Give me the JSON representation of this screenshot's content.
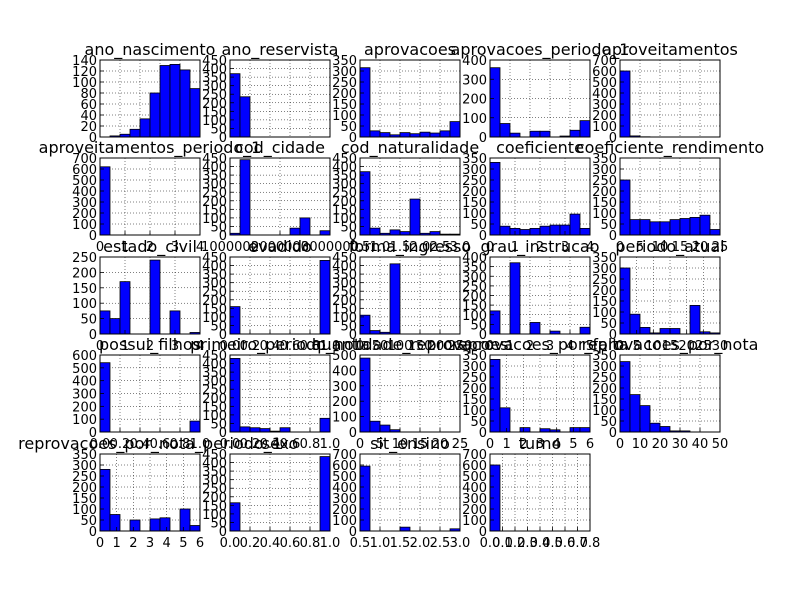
{
  "figure": {
    "bar_color": "#0000ff",
    "grid": true,
    "grid_style": "dotted"
  },
  "chart_data": [
    {
      "type": "bar",
      "title": "ano_nascimento",
      "xticks": [],
      "yticks": [
        "0",
        "20",
        "40",
        "60",
        "80",
        "100",
        "120",
        "140"
      ],
      "ylim": [
        0,
        140
      ],
      "values": [
        0,
        2,
        5,
        14,
        33,
        80,
        130,
        132,
        122,
        88
      ]
    },
    {
      "type": "bar",
      "title": "ano_reservista",
      "xticks": [],
      "yticks": [
        "0",
        "50",
        "100",
        "150",
        "200",
        "250",
        "300",
        "350",
        "400",
        "450"
      ],
      "ylim": [
        0,
        450
      ],
      "values": [
        370,
        235,
        0,
        0,
        0,
        0,
        0,
        0,
        0,
        0
      ]
    },
    {
      "type": "bar",
      "title": "aprovacoes",
      "xticks": [],
      "yticks": [
        "0",
        "50",
        "100",
        "150",
        "200",
        "250",
        "300",
        "350"
      ],
      "ylim": [
        0,
        350
      ],
      "values": [
        315,
        28,
        20,
        10,
        20,
        15,
        22,
        18,
        28,
        70
      ]
    },
    {
      "type": "bar",
      "title": "aprovacoes_periodo_1",
      "xticks": [],
      "yticks": [
        "0",
        "100",
        "200",
        "300",
        "400"
      ],
      "ylim": [
        0,
        400
      ],
      "values": [
        360,
        70,
        20,
        0,
        30,
        30,
        0,
        5,
        35,
        85
      ]
    },
    {
      "type": "bar",
      "title": "aproveitamentos",
      "xticks": [],
      "yticks": [
        "0",
        "100",
        "200",
        "300",
        "400",
        "500",
        "600",
        "700"
      ],
      "ylim": [
        0,
        700
      ],
      "values": [
        600,
        10,
        2,
        0,
        0,
        0,
        0,
        0,
        0,
        0
      ]
    },
    {
      "type": "bar",
      "title": "aproveitamentos_periodo_1",
      "xticks": [
        "0",
        "1",
        "2",
        "3",
        "4"
      ],
      "yticks": [
        "0",
        "100",
        "200",
        "300",
        "400",
        "500",
        "600",
        "700"
      ],
      "ylim": [
        0,
        700
      ],
      "values": [
        620,
        0,
        0,
        0,
        0,
        0,
        0,
        0,
        0,
        0
      ]
    },
    {
      "type": "bar",
      "title": "cod_cidade",
      "xticks": [
        "1000000",
        "2000000",
        "3000000"
      ],
      "yticks": [
        "0",
        "50",
        "100",
        "150",
        "200",
        "250",
        "300",
        "350",
        "400",
        "450"
      ],
      "ylim": [
        0,
        450
      ],
      "values": [
        10,
        440,
        0,
        0,
        0,
        0,
        40,
        100,
        0,
        25
      ]
    },
    {
      "type": "bar",
      "title": "cod_naturalidade",
      "xticks": [
        "0.5",
        "1.0",
        "1.5",
        "2.0",
        "2.5",
        "3.0"
      ],
      "yticks": [
        "0",
        "50",
        "100",
        "150",
        "200",
        "250",
        "300",
        "350",
        "400",
        "450"
      ],
      "ylim": [
        0,
        450
      ],
      "values": [
        370,
        40,
        10,
        30,
        20,
        210,
        10,
        20,
        5,
        5
      ]
    },
    {
      "type": "bar",
      "title": "coeficiente",
      "xticks": [
        "0",
        "1",
        "2",
        "3",
        "4"
      ],
      "yticks": [
        "0",
        "50",
        "100",
        "150",
        "200",
        "250",
        "300",
        "350"
      ],
      "ylim": [
        0,
        350
      ],
      "values": [
        330,
        40,
        30,
        25,
        30,
        40,
        45,
        45,
        95,
        30
      ]
    },
    {
      "type": "bar",
      "title": "coeficiente_rendimento",
      "xticks": [
        "0",
        "5",
        "10",
        "15",
        "20",
        "25"
      ],
      "yticks": [
        "0",
        "50",
        "100",
        "150",
        "200",
        "250",
        "300",
        "350"
      ],
      "ylim": [
        0,
        350
      ],
      "values": [
        250,
        70,
        70,
        60,
        60,
        70,
        75,
        80,
        90,
        25
      ]
    },
    {
      "type": "bar",
      "title": "estado_civil",
      "xticks": [
        "0",
        "1",
        "2",
        "3",
        "4"
      ],
      "yticks": [
        "0",
        "50",
        "100",
        "150",
        "200",
        "250"
      ],
      "ylim": [
        0,
        250
      ],
      "values": [
        75,
        50,
        170,
        0,
        0,
        240,
        0,
        75,
        0,
        5
      ]
    },
    {
      "type": "bar",
      "title": "evadido",
      "xticks": [
        "0.0",
        "0.2",
        "0.4",
        "0.6",
        "0.8",
        "1.0"
      ],
      "yticks": [
        "0",
        "50",
        "100",
        "150",
        "200",
        "250",
        "300",
        "350",
        "400",
        "450"
      ],
      "ylim": [
        0,
        450
      ],
      "values": [
        160,
        0,
        0,
        0,
        0,
        0,
        0,
        0,
        0,
        430
      ]
    },
    {
      "type": "bar",
      "title": "forma_ingresso",
      "xticks": [
        "0",
        "50",
        "100",
        "150",
        "200",
        "250"
      ],
      "yticks": [
        "0",
        "50",
        "100",
        "150",
        "200",
        "250",
        "300",
        "350",
        "400",
        "450"
      ],
      "ylim": [
        0,
        450
      ],
      "values": [
        110,
        20,
        10,
        410,
        0,
        0,
        0,
        0,
        0,
        0
      ]
    },
    {
      "type": "bar",
      "title": "grau_instrucao",
      "xticks": [
        "0",
        "1",
        "2",
        "3",
        "4",
        "5"
      ],
      "yticks": [
        "0",
        "50",
        "100",
        "150",
        "200",
        "250",
        "300",
        "350",
        "400"
      ],
      "ylim": [
        0,
        400
      ],
      "values": [
        120,
        0,
        370,
        0,
        60,
        0,
        15,
        0,
        0,
        35
      ]
    },
    {
      "type": "bar",
      "title": "periodo_atual",
      "xticks": [
        "0",
        "5",
        "10",
        "15",
        "20",
        "25",
        "30"
      ],
      "yticks": [
        "0",
        "50",
        "100",
        "150",
        "200",
        "250",
        "300",
        "350"
      ],
      "ylim": [
        0,
        350
      ],
      "values": [
        300,
        90,
        30,
        5,
        25,
        25,
        0,
        130,
        10,
        5
      ]
    },
    {
      "type": "bar",
      "title": "possui_filhos",
      "xticks": [
        "0.0",
        "0.2",
        "0.4",
        "0.6",
        "0.8",
        "1.0"
      ],
      "yticks": [
        "0",
        "100",
        "200",
        "300",
        "400",
        "500",
        "600"
      ],
      "ylim": [
        0,
        600
      ],
      "values": [
        540,
        0,
        0,
        0,
        0,
        0,
        0,
        0,
        0,
        85
      ]
    },
    {
      "type": "bar",
      "title": "primeiro_periodo_nota",
      "xticks": [
        "0.0",
        "0.2",
        "0.4",
        "0.6",
        "0.8",
        "1.0"
      ],
      "yticks": [
        "0",
        "50",
        "100",
        "150",
        "200",
        "250",
        "300",
        "350",
        "400",
        "450"
      ],
      "ylim": [
        0,
        450
      ],
      "values": [
        430,
        30,
        25,
        20,
        5,
        25,
        0,
        0,
        0,
        80
      ]
    },
    {
      "type": "bar",
      "title": "quantidade_reprovacoes",
      "xticks": [
        "0",
        "5",
        "10",
        "15",
        "20",
        "25"
      ],
      "yticks": [
        "0",
        "100",
        "200",
        "300",
        "400",
        "500"
      ],
      "ylim": [
        0,
        500
      ],
      "values": [
        480,
        70,
        45,
        15,
        0,
        0,
        0,
        0,
        0,
        0
      ]
    },
    {
      "type": "bar",
      "title": "reprovacoes_por_falta",
      "xticks": [
        "0",
        "1",
        "2",
        "3",
        "4",
        "5",
        "6"
      ],
      "yticks": [
        "0",
        "50",
        "100",
        "150",
        "200",
        "250",
        "300",
        "350"
      ],
      "ylim": [
        0,
        350
      ],
      "values": [
        330,
        110,
        0,
        20,
        0,
        15,
        10,
        0,
        20,
        20
      ]
    },
    {
      "type": "bar",
      "title": "reprovacoes_por_nota",
      "xticks": [
        "0",
        "10",
        "20",
        "30",
        "40",
        "50"
      ],
      "yticks": [
        "0",
        "50",
        "100",
        "150",
        "200",
        "250",
        "300",
        "350"
      ],
      "ylim": [
        0,
        350
      ],
      "values": [
        320,
        170,
        120,
        40,
        25,
        5,
        5,
        0,
        0,
        0
      ]
    },
    {
      "type": "bar",
      "title": "reprovacoes_por_nota_periodo_1",
      "xticks": [
        "0",
        "1",
        "2",
        "3",
        "4",
        "5",
        "6"
      ],
      "yticks": [
        "0",
        "50",
        "100",
        "150",
        "200",
        "250",
        "300",
        "350"
      ],
      "ylim": [
        0,
        350
      ],
      "values": [
        280,
        75,
        0,
        50,
        0,
        55,
        60,
        0,
        100,
        25
      ]
    },
    {
      "type": "bar",
      "title": "sexo",
      "xticks": [
        "0.0",
        "0.2",
        "0.4",
        "0.6",
        "0.8",
        "1.0"
      ],
      "yticks": [
        "0",
        "50",
        "100",
        "150",
        "200",
        "250",
        "300",
        "350",
        "400",
        "450"
      ],
      "ylim": [
        0,
        450
      ],
      "values": [
        165,
        0,
        0,
        0,
        0,
        0,
        0,
        0,
        0,
        435
      ]
    },
    {
      "type": "bar",
      "title": "sit_ensino",
      "xticks": [
        "0.5",
        "1.0",
        "1.5",
        "2.0",
        "2.5",
        "3.0"
      ],
      "yticks": [
        "0",
        "100",
        "200",
        "300",
        "400",
        "500",
        "600",
        "700"
      ],
      "ylim": [
        0,
        700
      ],
      "values": [
        590,
        0,
        0,
        0,
        35,
        0,
        0,
        0,
        0,
        20
      ]
    },
    {
      "type": "bar",
      "title": "turno",
      "xticks": [
        "0.0",
        "0.1",
        "0.2",
        "0.3",
        "0.4",
        "0.5",
        "0.6",
        "0.7",
        "0.8"
      ],
      "yticks": [
        "0",
        "100",
        "200",
        "300",
        "400",
        "500",
        "600",
        "700"
      ],
      "ylim": [
        0,
        700
      ],
      "values": [
        600,
        0,
        0,
        0,
        0,
        0,
        0,
        0,
        0,
        0
      ]
    }
  ]
}
